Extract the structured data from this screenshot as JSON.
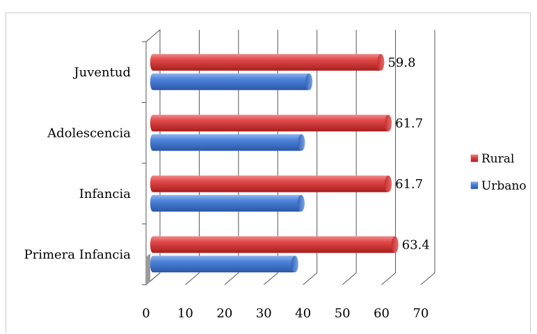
{
  "chart_data": {
    "type": "bar",
    "orientation": "horizontal",
    "style": "3d-cylinder",
    "categories": [
      "Primera Infancia",
      "Infancia",
      "Adolescencia",
      "Juventud"
    ],
    "series": [
      {
        "name": "Urbano",
        "color": "#4a7fd4",
        "values": [
          37.9,
          39.5,
          39.6,
          41.5
        ]
      },
      {
        "name": "Rural",
        "color": "#d93a3a",
        "values": [
          63.4,
          61.7,
          61.7,
          59.8
        ]
      }
    ],
    "data_labels": {
      "Rural": [
        "63.4",
        "61.7",
        "61.7",
        "59.8"
      ]
    },
    "xlim": [
      0,
      70
    ],
    "xticks": [
      0,
      10,
      20,
      30,
      40,
      50,
      60,
      70
    ],
    "grid": true,
    "legend_position": "right",
    "title": "",
    "xlabel": "",
    "ylabel": ""
  }
}
